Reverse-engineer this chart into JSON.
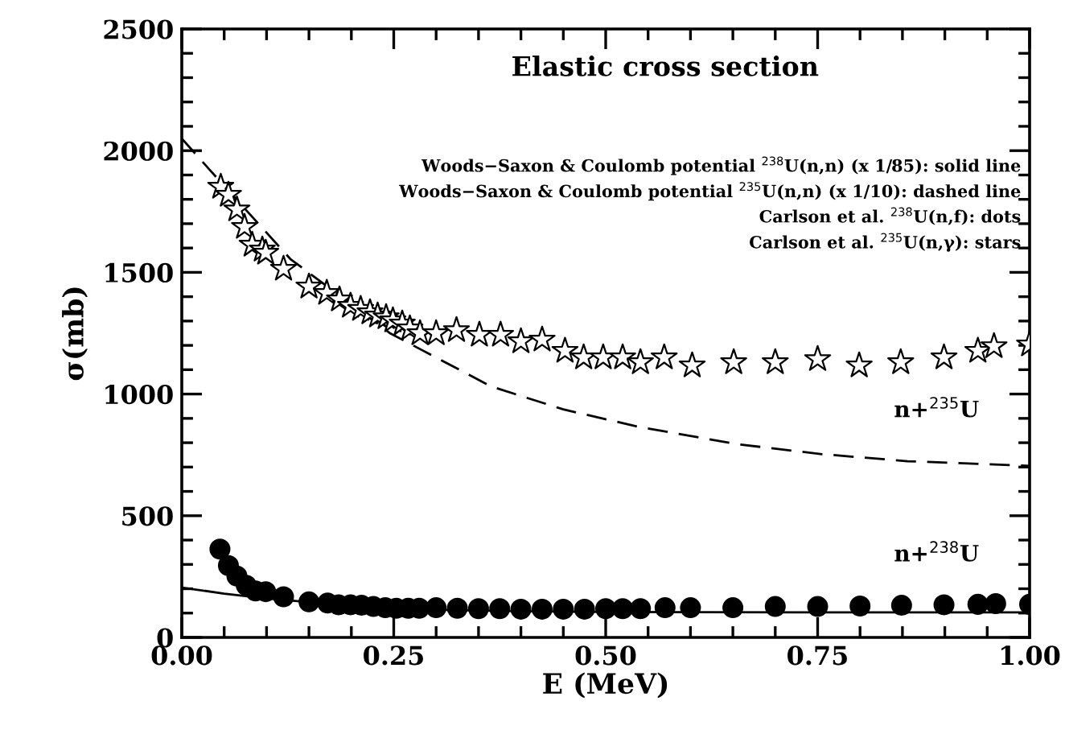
{
  "chart_data": {
    "type": "scatter",
    "title": "Elastic cross section",
    "xlabel": "E (MeV)",
    "ylabel": "σ(mb)",
    "xlim": [
      0,
      1
    ],
    "ylim": [
      0,
      2500
    ],
    "xticks": [
      {
        "value": 0,
        "label": "0.00"
      },
      {
        "value": 0.25,
        "label": "0.25"
      },
      {
        "value": 0.5,
        "label": "0.50"
      },
      {
        "value": 0.75,
        "label": "0.75"
      },
      {
        "value": 1,
        "label": "1.00"
      }
    ],
    "yticks": [
      0,
      500,
      1000,
      1500,
      2000,
      2500
    ],
    "grid": false,
    "legend": false,
    "series": [
      {
        "type": "line",
        "line_style": "solid",
        "marker": "none",
        "color": "#000000",
        "x": [
          0,
          0.05,
          0.1,
          0.15,
          0.2,
          0.25,
          0.3,
          0.4,
          0.5,
          0.6,
          0.8,
          1.0
        ],
        "values": [
          205,
          180,
          160,
          145,
          130,
          120,
          114,
          108,
          105,
          104,
          103,
          103
        ]
      },
      {
        "type": "line",
        "line_style": "dashed",
        "marker": "none",
        "color": "#000000",
        "x": [
          0,
          0.033,
          0.128,
          0.246,
          0.365,
          0.45,
          0.538,
          0.653,
          0.755,
          0.856,
          1.0
        ],
        "values": [
          2050,
          1921,
          1555,
          1249,
          1031,
          937,
          866,
          795,
          753,
          724,
          705
        ]
      },
      {
        "marker": "circle",
        "color": "#000000",
        "x": [
          0.045,
          0.055,
          0.065,
          0.076,
          0.087,
          0.099,
          0.12,
          0.15,
          0.172,
          0.185,
          0.199,
          0.212,
          0.226,
          0.24,
          0.253,
          0.267,
          0.28,
          0.3,
          0.325,
          0.35,
          0.375,
          0.4,
          0.425,
          0.45,
          0.475,
          0.5,
          0.52,
          0.541,
          0.57,
          0.6,
          0.65,
          0.7,
          0.75,
          0.8,
          0.849,
          0.899,
          0.939,
          0.96,
          1.0
        ],
        "values": [
          363,
          295,
          252,
          214,
          191,
          188,
          167,
          146,
          141,
          134,
          134,
          132,
          127,
          122,
          120,
          120,
          120,
          122,
          120,
          118,
          118,
          116,
          116,
          116,
          116,
          118,
          118,
          118,
          122,
          122,
          122,
          127,
          127,
          129,
          132,
          134,
          136,
          139,
          136
        ]
      },
      {
        "marker": "star",
        "color": "#000000",
        "x": [
          0.046,
          0.055,
          0.065,
          0.074,
          0.083,
          0.095,
          0.099,
          0.12,
          0.15,
          0.171,
          0.186,
          0.199,
          0.211,
          0.222,
          0.231,
          0.241,
          0.249,
          0.26,
          0.269,
          0.281,
          0.3,
          0.324,
          0.351,
          0.376,
          0.4,
          0.425,
          0.452,
          0.474,
          0.497,
          0.52,
          0.541,
          0.569,
          0.602,
          0.651,
          0.7,
          0.75,
          0.799,
          0.848,
          0.899,
          0.939,
          0.958,
          1.0
        ],
        "values": [
          1851,
          1818,
          1758,
          1686,
          1613,
          1593,
          1580,
          1514,
          1441,
          1415,
          1388,
          1362,
          1349,
          1335,
          1322,
          1315,
          1302,
          1289,
          1269,
          1249,
          1249,
          1262,
          1243,
          1243,
          1216,
          1223,
          1177,
          1150,
          1150,
          1150,
          1130,
          1150,
          1117,
          1130,
          1130,
          1143,
          1117,
          1130,
          1150,
          1177,
          1196,
          1203
        ]
      }
    ],
    "annotations": [
      "Woods−Saxon & Coulomb potential $^{238}$U(n,n) (x 1/85): solid line",
      "Woods−Saxon & Coulomb potential $^{235}$U(n,n) (x 1/10): dashed line",
      "Carlson et al. $^{238}$U(n,f): dots",
      "Carlson et al. $^{235}$U(n,γ): stars",
      "n+$^{235}$U",
      "n+$^{238}$U"
    ]
  }
}
